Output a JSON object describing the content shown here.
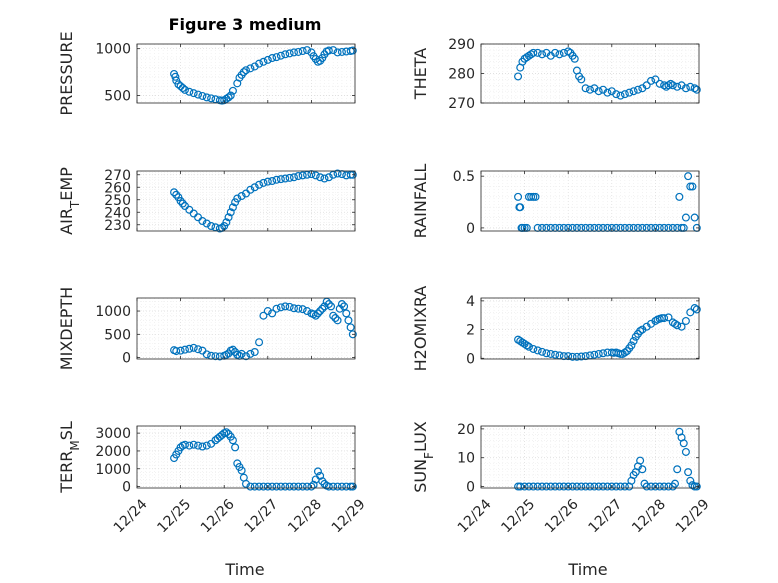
{
  "title": "Figure 3 medium",
  "xlabel": "Time",
  "xticklabels": [
    "12/24",
    "12/25",
    "12/26",
    "12/27",
    "12/28",
    "12/29"
  ],
  "colors": {
    "marker": "#0072BD",
    "axes": "#262626",
    "grid": "#d9d9d9",
    "background": "#ffffff"
  },
  "chart_data": [
    {
      "type": "scatter",
      "ylabel": "PRESSURE",
      "xlim": [
        0,
        5
      ],
      "ylim": [
        420,
        1050
      ],
      "yticks": [
        500,
        1000
      ],
      "yticklabels": [
        "500",
        "1000"
      ],
      "title": "Figure 3 medium",
      "x": [
        0.85,
        0.88,
        0.9,
        0.95,
        1.0,
        1.05,
        1.1,
        1.2,
        1.3,
        1.4,
        1.5,
        1.6,
        1.7,
        1.8,
        1.9,
        1.95,
        2.0,
        2.05,
        2.1,
        2.15,
        2.2,
        2.3,
        2.35,
        2.4,
        2.45,
        2.5,
        2.6,
        2.7,
        2.8,
        2.9,
        3.0,
        3.1,
        3.2,
        3.3,
        3.4,
        3.5,
        3.6,
        3.7,
        3.8,
        3.9,
        4.0,
        4.05,
        4.1,
        4.15,
        4.2,
        4.25,
        4.3,
        4.35,
        4.4,
        4.5,
        4.6,
        4.7,
        4.8,
        4.9,
        4.95
      ],
      "y": [
        730,
        700,
        660,
        620,
        600,
        580,
        560,
        540,
        525,
        510,
        495,
        480,
        470,
        460,
        450,
        445,
        450,
        465,
        480,
        500,
        550,
        630,
        690,
        720,
        750,
        770,
        790,
        810,
        840,
        860,
        880,
        900,
        910,
        925,
        940,
        950,
        960,
        965,
        975,
        985,
        960,
        920,
        890,
        860,
        870,
        900,
        940,
        970,
        980,
        985,
        960,
        965,
        970,
        975,
        980
      ]
    },
    {
      "type": "scatter",
      "ylabel": "THETA",
      "xlim": [
        0,
        5
      ],
      "ylim": [
        270,
        290
      ],
      "yticks": [
        270,
        280,
        290
      ],
      "yticklabels": [
        "270",
        "280",
        "290"
      ],
      "x": [
        0.85,
        0.9,
        0.95,
        1.0,
        1.05,
        1.1,
        1.15,
        1.2,
        1.3,
        1.4,
        1.5,
        1.6,
        1.7,
        1.8,
        1.9,
        2.0,
        2.05,
        2.1,
        2.15,
        2.2,
        2.25,
        2.3,
        2.4,
        2.5,
        2.6,
        2.7,
        2.8,
        2.9,
        3.0,
        3.1,
        3.2,
        3.3,
        3.4,
        3.5,
        3.6,
        3.7,
        3.8,
        3.9,
        4.0,
        4.1,
        4.2,
        4.25,
        4.3,
        4.35,
        4.4,
        4.5,
        4.6,
        4.7,
        4.8,
        4.9,
        4.95
      ],
      "y": [
        279,
        282,
        284,
        285,
        285.5,
        286,
        286.5,
        287,
        287,
        286.5,
        287,
        286,
        287,
        286.5,
        287,
        287.5,
        287,
        286,
        285,
        281,
        279,
        278,
        275,
        274.5,
        275,
        274,
        274.5,
        273.5,
        274,
        273,
        272.5,
        273,
        273.5,
        274,
        274.5,
        275,
        276,
        277.5,
        278,
        276.5,
        276,
        275.5,
        276,
        276.5,
        276,
        275.5,
        276,
        275,
        275.5,
        275,
        274.5
      ]
    },
    {
      "type": "scatter",
      "ylabel": "AIR_TEMP",
      "xlim": [
        0,
        5
      ],
      "ylim": [
        225,
        273
      ],
      "yticks": [
        230,
        240,
        250,
        260,
        270
      ],
      "yticklabels": [
        "230",
        "240",
        "250",
        "260",
        "270"
      ],
      "x": [
        0.85,
        0.9,
        0.95,
        1.0,
        1.05,
        1.1,
        1.2,
        1.3,
        1.4,
        1.5,
        1.6,
        1.7,
        1.8,
        1.9,
        1.95,
        2.0,
        2.05,
        2.1,
        2.15,
        2.2,
        2.25,
        2.3,
        2.4,
        2.5,
        2.6,
        2.7,
        2.8,
        2.9,
        3.0,
        3.1,
        3.2,
        3.3,
        3.4,
        3.5,
        3.6,
        3.7,
        3.8,
        3.9,
        4.0,
        4.1,
        4.2,
        4.3,
        4.4,
        4.5,
        4.6,
        4.7,
        4.8,
        4.9,
        4.95
      ],
      "y": [
        256,
        254,
        252,
        249,
        247,
        245,
        242,
        239,
        236,
        233,
        231,
        229,
        228,
        227,
        227.5,
        229,
        232,
        236,
        240,
        244,
        248,
        251,
        253,
        255,
        258,
        260,
        262,
        263.5,
        264.5,
        265,
        266,
        266.5,
        267,
        267.5,
        268,
        269,
        269.5,
        270,
        270.5,
        269.5,
        268,
        267,
        268,
        270,
        271,
        270.5,
        269.5,
        270,
        270
      ]
    },
    {
      "type": "scatter",
      "ylabel": "RAINFALL",
      "xlim": [
        0,
        5
      ],
      "ylim": [
        -0.03,
        0.55
      ],
      "yticks": [
        0,
        0.5
      ],
      "yticklabels": [
        "0",
        "0.5"
      ],
      "x": [
        0.85,
        0.88,
        0.9,
        0.93,
        0.95,
        1.0,
        1.05,
        1.1,
        1.15,
        1.2,
        1.25,
        1.3,
        1.4,
        1.5,
        1.6,
        1.7,
        1.8,
        1.9,
        2.0,
        2.1,
        2.2,
        2.3,
        2.4,
        2.5,
        2.6,
        2.7,
        2.8,
        2.9,
        3.0,
        3.1,
        3.2,
        3.3,
        3.4,
        3.5,
        3.6,
        3.7,
        3.8,
        3.9,
        4.0,
        4.1,
        4.2,
        4.3,
        4.4,
        4.5,
        4.55,
        4.6,
        4.65,
        4.7,
        4.75,
        4.8,
        4.85,
        4.9,
        4.95
      ],
      "y": [
        0.3,
        0.2,
        0.2,
        0,
        0,
        0,
        0,
        0.3,
        0.3,
        0.3,
        0.3,
        0,
        0,
        0,
        0,
        0,
        0,
        0,
        0,
        0,
        0,
        0,
        0,
        0,
        0,
        0,
        0,
        0,
        0,
        0,
        0,
        0,
        0,
        0,
        0,
        0,
        0,
        0,
        0,
        0,
        0,
        0,
        0,
        0,
        0.3,
        0,
        0,
        0.1,
        0.5,
        0.4,
        0.4,
        0.1,
        0
      ]
    },
    {
      "type": "scatter",
      "ylabel": "MIXDEPTH",
      "xlim": [
        0,
        5
      ],
      "ylim": [
        -30,
        1280
      ],
      "yticks": [
        0,
        500,
        1000
      ],
      "yticklabels": [
        "0",
        "500",
        "1000"
      ],
      "x": [
        0.85,
        0.9,
        1.0,
        1.1,
        1.2,
        1.3,
        1.4,
        1.5,
        1.6,
        1.7,
        1.8,
        1.9,
        2.0,
        2.05,
        2.1,
        2.15,
        2.2,
        2.25,
        2.3,
        2.35,
        2.4,
        2.5,
        2.6,
        2.7,
        2.8,
        2.9,
        3.0,
        3.1,
        3.2,
        3.3,
        3.4,
        3.5,
        3.6,
        3.7,
        3.8,
        3.9,
        4.0,
        4.05,
        4.1,
        4.15,
        4.2,
        4.25,
        4.3,
        4.35,
        4.4,
        4.45,
        4.5,
        4.55,
        4.6,
        4.65,
        4.7,
        4.75,
        4.8,
        4.85,
        4.9,
        4.95
      ],
      "y": [
        160,
        140,
        150,
        170,
        190,
        210,
        180,
        150,
        70,
        40,
        30,
        25,
        40,
        60,
        90,
        150,
        170,
        120,
        60,
        40,
        80,
        30,
        80,
        120,
        330,
        900,
        1000,
        950,
        1050,
        1080,
        1100,
        1090,
        1060,
        1050,
        1040,
        1000,
        950,
        930,
        900,
        950,
        1000,
        1050,
        1100,
        1200,
        1150,
        1100,
        900,
        850,
        800,
        1050,
        1150,
        1100,
        950,
        800,
        650,
        500
      ]
    },
    {
      "type": "scatter",
      "ylabel": "H2OMIXRA",
      "xlim": [
        0,
        5
      ],
      "ylim": [
        -0.05,
        4.2
      ],
      "yticks": [
        0,
        2,
        4
      ],
      "yticklabels": [
        "0",
        "2",
        "4"
      ],
      "x": [
        0.85,
        0.9,
        0.95,
        1.0,
        1.05,
        1.1,
        1.2,
        1.3,
        1.4,
        1.5,
        1.6,
        1.7,
        1.8,
        1.9,
        2.0,
        2.1,
        2.2,
        2.3,
        2.4,
        2.5,
        2.6,
        2.7,
        2.8,
        2.9,
        3.0,
        3.05,
        3.1,
        3.15,
        3.2,
        3.25,
        3.3,
        3.35,
        3.4,
        3.45,
        3.5,
        3.55,
        3.6,
        3.65,
        3.7,
        3.8,
        3.9,
        4.0,
        4.05,
        4.1,
        4.15,
        4.2,
        4.3,
        4.4,
        4.45,
        4.5,
        4.6,
        4.7,
        4.8,
        4.9,
        4.95
      ],
      "y": [
        1.3,
        1.2,
        1.1,
        1.0,
        0.9,
        0.8,
        0.65,
        0.55,
        0.45,
        0.35,
        0.3,
        0.25,
        0.2,
        0.15,
        0.15,
        0.1,
        0.1,
        0.12,
        0.15,
        0.2,
        0.25,
        0.3,
        0.35,
        0.4,
        0.4,
        0.38,
        0.4,
        0.35,
        0.3,
        0.3,
        0.4,
        0.5,
        0.7,
        0.9,
        1.2,
        1.5,
        1.7,
        1.9,
        2.0,
        2.2,
        2.4,
        2.6,
        2.7,
        2.75,
        2.8,
        2.8,
        2.85,
        2.5,
        2.4,
        2.3,
        2.2,
        2.6,
        3.2,
        3.5,
        3.4
      ]
    },
    {
      "type": "scatter",
      "ylabel": "TERR_MSL",
      "xlim": [
        0,
        5
      ],
      "ylim": [
        -80,
        3400
      ],
      "yticks": [
        0,
        1000,
        2000,
        3000
      ],
      "yticklabels": [
        "0",
        "1000",
        "2000",
        "3000"
      ],
      "x": [
        0.85,
        0.9,
        0.95,
        1.0,
        1.05,
        1.1,
        1.2,
        1.3,
        1.4,
        1.5,
        1.6,
        1.7,
        1.8,
        1.85,
        1.9,
        1.95,
        2.0,
        2.05,
        2.1,
        2.15,
        2.2,
        2.25,
        2.3,
        2.35,
        2.4,
        2.45,
        2.5,
        2.6,
        2.7,
        2.8,
        2.9,
        3.0,
        3.1,
        3.2,
        3.3,
        3.4,
        3.5,
        3.6,
        3.7,
        3.8,
        3.9,
        4.0,
        4.05,
        4.1,
        4.15,
        4.2,
        4.25,
        4.3,
        4.35,
        4.4,
        4.5,
        4.6,
        4.7,
        4.8,
        4.9,
        4.95
      ],
      "y": [
        1600,
        1800,
        2000,
        2200,
        2300,
        2350,
        2300,
        2350,
        2300,
        2250,
        2300,
        2400,
        2600,
        2700,
        2800,
        2900,
        3000,
        3050,
        2950,
        2800,
        2600,
        2200,
        1300,
        1100,
        900,
        500,
        150,
        0,
        0,
        0,
        0,
        0,
        0,
        0,
        0,
        0,
        0,
        0,
        0,
        0,
        0,
        0,
        100,
        400,
        850,
        600,
        300,
        150,
        50,
        0,
        0,
        0,
        0,
        0,
        0,
        0
      ]
    },
    {
      "type": "scatter",
      "ylabel": "SUN_FLUX",
      "xlim": [
        0,
        5
      ],
      "ylim": [
        -0.5,
        21
      ],
      "yticks": [
        0,
        10,
        20
      ],
      "yticklabels": [
        "0",
        "10",
        "20"
      ],
      "x": [
        0.85,
        0.9,
        1.0,
        1.1,
        1.2,
        1.3,
        1.4,
        1.5,
        1.6,
        1.7,
        1.8,
        1.9,
        2.0,
        2.1,
        2.2,
        2.3,
        2.4,
        2.5,
        2.6,
        2.7,
        2.8,
        2.9,
        3.0,
        3.1,
        3.2,
        3.3,
        3.4,
        3.45,
        3.5,
        3.55,
        3.6,
        3.65,
        3.7,
        3.75,
        3.8,
        3.9,
        4.0,
        4.1,
        4.2,
        4.3,
        4.4,
        4.45,
        4.5,
        4.55,
        4.6,
        4.65,
        4.7,
        4.75,
        4.8,
        4.85,
        4.9,
        4.95
      ],
      "y": [
        0,
        0,
        0,
        0,
        0,
        0,
        0,
        0,
        0,
        0,
        0,
        0,
        0,
        0,
        0,
        0,
        0,
        0,
        0,
        0,
        0,
        0,
        0,
        0,
        0,
        0,
        0,
        2,
        4,
        5,
        7,
        9,
        6,
        1,
        0,
        0,
        0,
        0,
        0,
        0,
        0,
        1,
        6,
        19,
        17,
        15,
        12,
        5,
        2,
        0.5,
        0,
        0
      ]
    }
  ]
}
